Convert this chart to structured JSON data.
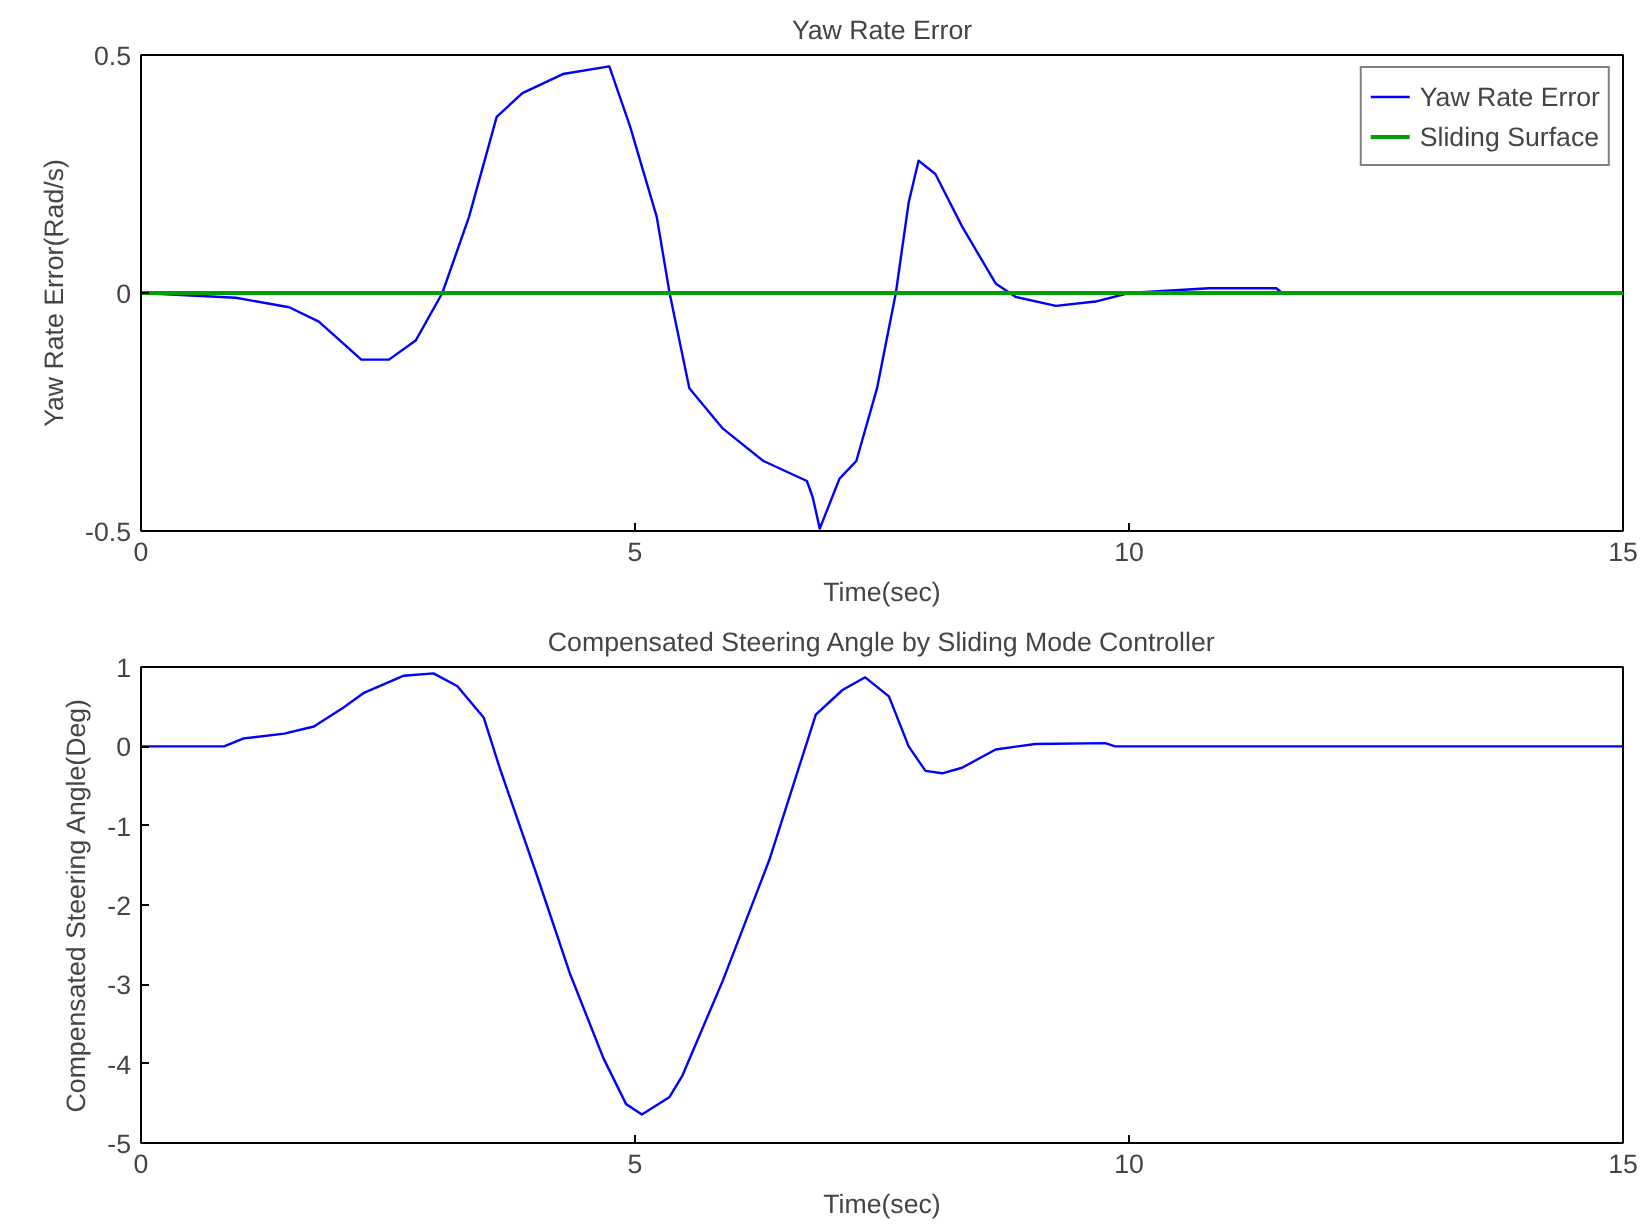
{
  "chart_data": [
    {
      "type": "line",
      "title": "Yaw Rate Error",
      "xlabel": "Time(sec)",
      "ylabel": "Yaw Rate Error(Rad/s)",
      "xlim": [
        0,
        15
      ],
      "ylim": [
        -0.5,
        0.5
      ],
      "xticks": [
        0,
        5,
        10,
        15
      ],
      "yticks": [
        -0.5,
        0,
        0.5
      ],
      "legend": "top right",
      "series": [
        {
          "name": "Yaw Rate Error",
          "color": "#0000ff",
          "x": [
            0,
            0.96,
            1.5,
            1.8,
            2.23,
            2.51,
            2.78,
            3.05,
            3.32,
            3.6,
            3.86,
            4.27,
            4.74,
            4.95,
            5.22,
            5.35,
            5.55,
            5.89,
            6.3,
            6.74,
            6.8,
            6.87,
            7.07,
            7.24,
            7.45,
            7.64,
            7.77,
            7.87,
            8.04,
            8.31,
            8.65,
            8.85,
            9.26,
            9.66,
            10,
            10.81,
            11.49,
            11.55,
            15
          ],
          "values": [
            0,
            -0.01,
            -0.03,
            -0.06,
            -0.14,
            -0.14,
            -0.1,
            0,
            0.16,
            0.37,
            0.42,
            0.46,
            0.476,
            0.35,
            0.16,
            0,
            -0.2,
            -0.285,
            -0.353,
            -0.395,
            -0.43,
            -0.495,
            -0.39,
            -0.353,
            -0.2,
            0,
            0.19,
            0.278,
            0.25,
            0.14,
            0.02,
            -0.008,
            -0.027,
            -0.018,
            0,
            0.01,
            0.01,
            0,
            0
          ]
        },
        {
          "name": "Sliding Surface",
          "color": "#00a000",
          "x": [
            0,
            15
          ],
          "values": [
            0,
            0
          ]
        }
      ]
    },
    {
      "type": "line",
      "title": "Compensated Steering Angle by Sliding Mode Controller",
      "xlabel": "Time(sec)",
      "ylabel": "Compensated Steering Angle(Deg)",
      "xlim": [
        0,
        15
      ],
      "ylim": [
        -5,
        1
      ],
      "xticks": [
        0,
        5,
        10,
        15
      ],
      "yticks": [
        -5,
        -4,
        -3,
        -2,
        -1,
        0,
        1
      ],
      "series": [
        {
          "color": "#0000ff",
          "x": [
            0,
            0.84,
            1.04,
            1.45,
            1.75,
            2.05,
            2.25,
            2.66,
            2.96,
            3.2,
            3.47,
            3.63,
            4.0,
            4.34,
            4.68,
            4.91,
            5.07,
            5.35,
            5.48,
            5.89,
            6.36,
            6.83,
            7.1,
            7.33,
            7.57,
            7.77,
            7.94,
            8.11,
            8.31,
            8.65,
            9.05,
            9.76,
            9.86,
            15
          ],
          "values": [
            0,
            0,
            0.1,
            0.16,
            0.25,
            0.49,
            0.67,
            0.89,
            0.92,
            0.76,
            0.36,
            -0.27,
            -1.6,
            -2.86,
            -3.93,
            -4.51,
            -4.64,
            -4.42,
            -4.15,
            -2.95,
            -1.43,
            0.4,
            0.71,
            0.87,
            0.63,
            0,
            -0.31,
            -0.34,
            -0.27,
            -0.04,
            0.03,
            0.04,
            0,
            0
          ]
        }
      ]
    }
  ]
}
